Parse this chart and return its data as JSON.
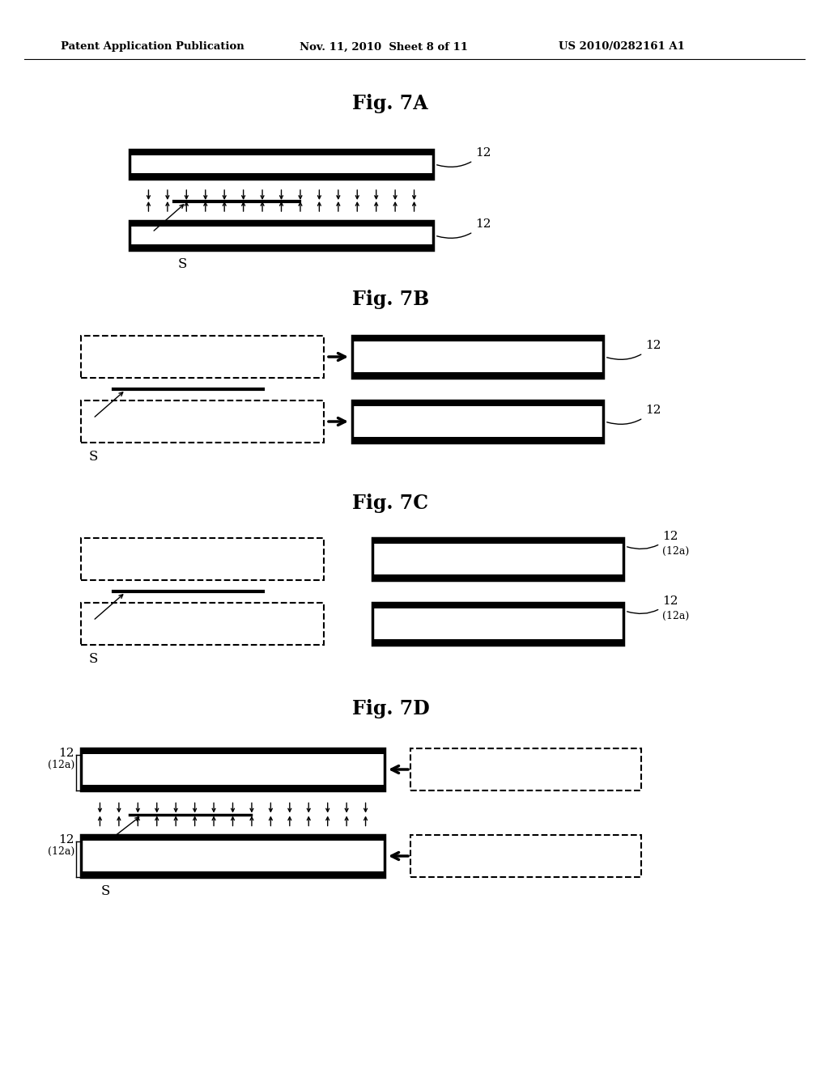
{
  "bg_color": "#ffffff",
  "header_left": "Patent Application Publication",
  "header_mid": "Nov. 11, 2010  Sheet 8 of 11",
  "header_right": "US 2010/0282161 A1",
  "label_12": "12",
  "label_S": "S",
  "label_12a": "(12a)"
}
